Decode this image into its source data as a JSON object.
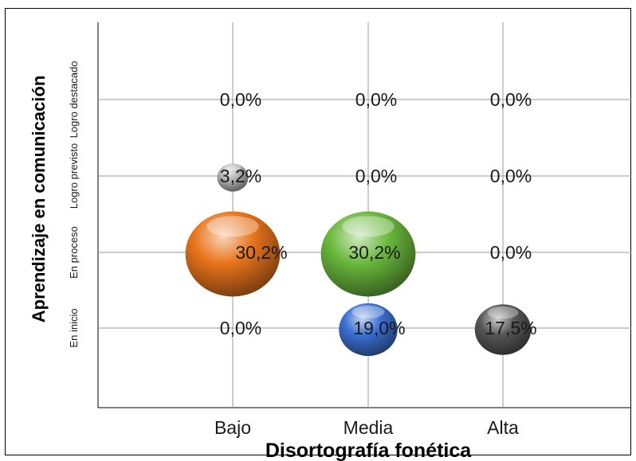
{
  "chart_data": {
    "type": "scatter",
    "xlabel": "Disortografía fonética",
    "ylabel": "Aprendizaje en comunicación",
    "x_categories": [
      "Bajo",
      "Media",
      "Alta"
    ],
    "y_categories": [
      "En inicio",
      "En proceso",
      "Logro previsto",
      "Logro destacado"
    ],
    "grid": true,
    "points": [
      {
        "x": "Bajo",
        "y": "Logro destacado",
        "value": 0.0,
        "label": "0,0%",
        "color": ""
      },
      {
        "x": "Media",
        "y": "Logro destacado",
        "value": 0.0,
        "label": "0,0%",
        "color": ""
      },
      {
        "x": "Alta",
        "y": "Logro destacado",
        "value": 0.0,
        "label": "0,0%",
        "color": ""
      },
      {
        "x": "Bajo",
        "y": "Logro previsto",
        "value": 3.2,
        "label": "3,2%",
        "color": "#b0b0b0"
      },
      {
        "x": "Media",
        "y": "Logro previsto",
        "value": 0.0,
        "label": "0,0%",
        "color": ""
      },
      {
        "x": "Alta",
        "y": "Logro previsto",
        "value": 0.0,
        "label": "0,0%",
        "color": ""
      },
      {
        "x": "Bajo",
        "y": "En proceso",
        "value": 30.2,
        "label": "30,2%",
        "color": "#e8741c"
      },
      {
        "x": "Media",
        "y": "En proceso",
        "value": 30.2,
        "label": "30,2%",
        "color": "#6ab83c"
      },
      {
        "x": "Alta",
        "y": "En proceso",
        "value": 0.0,
        "label": "0,0%",
        "color": ""
      },
      {
        "x": "Bajo",
        "y": "En inicio",
        "value": 0.0,
        "label": "0,0%",
        "color": ""
      },
      {
        "x": "Media",
        "y": "En inicio",
        "value": 19.0,
        "label": "19,0%",
        "color": "#3a6fd0"
      },
      {
        "x": "Alta",
        "y": "En inicio",
        "value": 17.5,
        "label": "17,5%",
        "color": "#555555"
      }
    ]
  }
}
